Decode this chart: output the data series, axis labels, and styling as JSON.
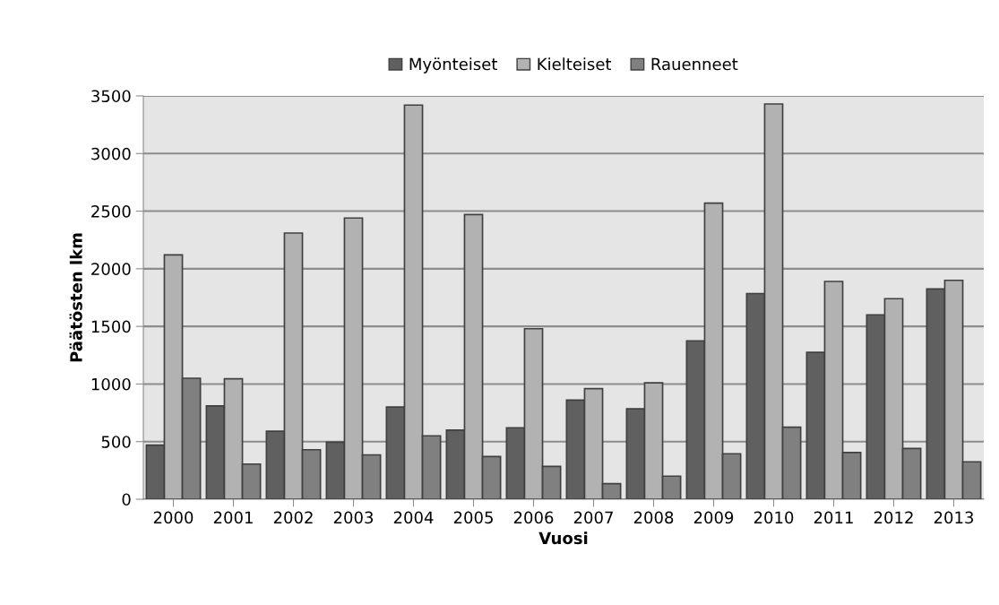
{
  "chart_data": {
    "type": "bar",
    "xlabel": "Vuosi",
    "ylabel": "Päätösten lkm",
    "categories": [
      "2000",
      "2001",
      "2002",
      "2003",
      "2004",
      "2005",
      "2006",
      "2007",
      "2008",
      "2009",
      "2010",
      "2011",
      "2012",
      "2013"
    ],
    "series": [
      {
        "name": "Myönteiset",
        "color": "#606060",
        "values": [
          470,
          810,
          590,
          495,
          800,
          600,
          620,
          860,
          785,
          1375,
          1785,
          1275,
          1600,
          1825
        ]
      },
      {
        "name": "Kielteiset",
        "color": "#b2b2b2",
        "values": [
          2120,
          1045,
          2310,
          2440,
          3420,
          2470,
          1480,
          960,
          1010,
          2570,
          3430,
          1890,
          1740,
          1900
        ]
      },
      {
        "name": "Rauenneet",
        "color": "#808080",
        "values": [
          1050,
          305,
          430,
          385,
          550,
          370,
          285,
          135,
          200,
          395,
          625,
          405,
          440,
          325
        ]
      }
    ],
    "ylim": [
      0,
      3500
    ],
    "yticks": [
      0,
      500,
      1000,
      1500,
      2000,
      2500,
      3000,
      3500
    ],
    "grid": "y",
    "legend": "top"
  }
}
